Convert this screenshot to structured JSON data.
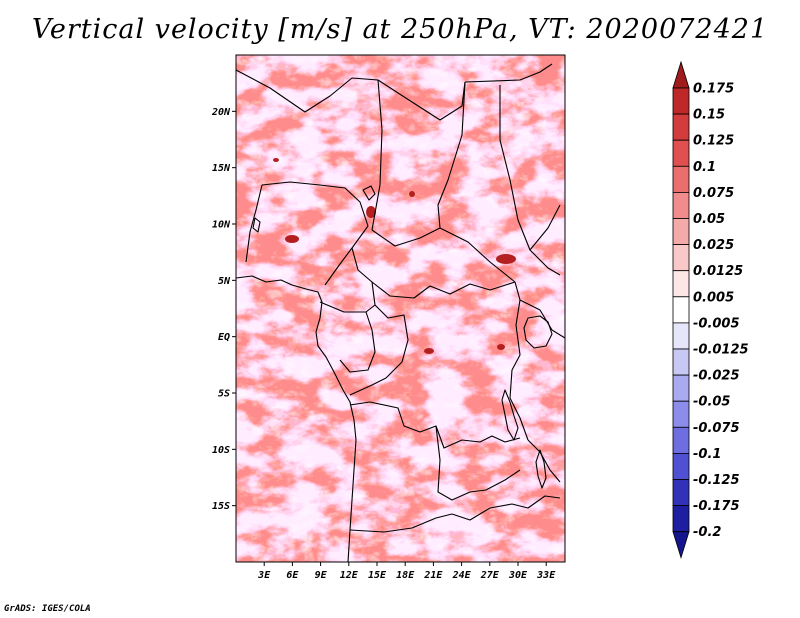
{
  "title": "Vertical velocity [m/s] at 250hPa, VT: 2020072421",
  "footer": "GrADS: IGES/COLA",
  "map": {
    "lat_labels": [
      "20N",
      "15N",
      "10N",
      "5N",
      "EQ",
      "5S",
      "10S",
      "15S"
    ],
    "lat_values": [
      20,
      15,
      10,
      5,
      0,
      -5,
      -10,
      -15
    ],
    "lon_labels": [
      "3E",
      "6E",
      "9E",
      "12E",
      "15E",
      "18E",
      "21E",
      "24E",
      "27E",
      "30E",
      "33E"
    ],
    "lon_values": [
      3,
      6,
      9,
      12,
      15,
      18,
      21,
      24,
      27,
      30,
      33
    ],
    "lat_range": [
      -20,
      25
    ],
    "lon_range": [
      0,
      35
    ],
    "border_color": "#000000"
  },
  "colorbar": {
    "labels": [
      "0.175",
      "0.15",
      "0.125",
      "0.1",
      "0.075",
      "0.05",
      "0.025",
      "0.0125",
      "0.005",
      "-0.005",
      "-0.0125",
      "-0.025",
      "-0.05",
      "-0.075",
      "-0.1",
      "-0.125",
      "-0.175",
      "-0.2"
    ],
    "colors": [
      "#a01c1c",
      "#be2828",
      "#d23c3c",
      "#e15050",
      "#eb6e6e",
      "#f08c8c",
      "#f5aaaa",
      "#f9c8c8",
      "#fce6e6",
      "#ffffff",
      "#e6e6fa",
      "#c8c8f5",
      "#aaaaf0",
      "#8c8ceb",
      "#6e6ee1",
      "#5050d2",
      "#3232b9",
      "#1e1ea0",
      "#14148c"
    ]
  }
}
